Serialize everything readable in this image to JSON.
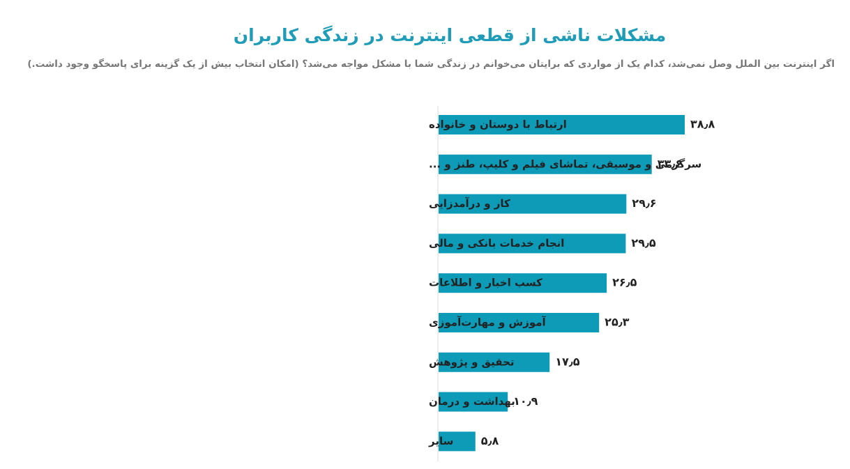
{
  "chart_data": {
    "type": "bar",
    "orientation": "horizontal",
    "title": "مشکلات ناشی از قطعی اینترنت در زندگی کاربران",
    "subtitle": "اگر اینترنت بین الملل وصل نمی‌شد، کدام یک از مواردی که برایتان می‌خوانم در زندگی شما با مشکل مواجه می‌شد؟ (امکان انتخاب بیش از یک گزینه برای پاسخگو وجود داشت.)",
    "categories": [
      "ارتباط با دوستان و خانواده",
      "سرگرمی و موسیقی، تماشای فیلم و کلیپ، طنز و ...",
      "کار و درآمدزایی",
      "انجام خدمات بانکی و مالی",
      "کسب اخبار و اطلاعات",
      "آموزش و مهارت‌آموزی",
      "تحقیق و پژوهش",
      "بهداشت و درمان",
      "سایر"
    ],
    "values": [
      38.8,
      33.6,
      29.6,
      29.5,
      26.5,
      25.3,
      17.5,
      10.9,
      5.8
    ],
    "value_labels": [
      "۳۸٫۸",
      "۳۳٫۶",
      "۲۹٫۶",
      "۲۹٫۵",
      "۲۶٫۵",
      "۲۵٫۳",
      "۱۷٫۵",
      "۱۰٫۹",
      "۵٫۸"
    ],
    "bar_color": "#0e9bb8",
    "axis_color": "#d9d9d9",
    "grid": false,
    "legend": "none"
  }
}
